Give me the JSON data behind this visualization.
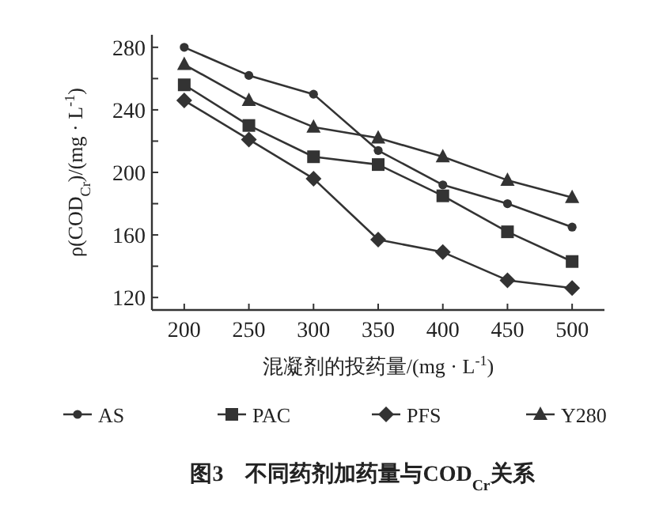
{
  "chart_data": {
    "type": "line",
    "title": "图3　不同药剂加药量与COD$_{Cr}$关系",
    "xlabel": "混凝剂的投药量/(mg · L$^{-1}$)",
    "ylabel": "ρ(COD$_{Cr}$)/(mg · L$^{-1}$)",
    "x": [
      200,
      250,
      300,
      350,
      400,
      450,
      500
    ],
    "xlim": [
      175,
      525
    ],
    "ylim": [
      112,
      288
    ],
    "xticks": [
      200,
      250,
      300,
      350,
      400,
      450,
      500
    ],
    "yticks": [
      120,
      {
        "value": 140,
        "label": null
      },
      160,
      {
        "value": 180,
        "label": null
      },
      200,
      {
        "value": 220,
        "label": null
      },
      240,
      {
        "value": 260,
        "label": null
      },
      280
    ],
    "legend": "bottom",
    "line_style": "solid",
    "series": [
      {
        "name": "AS",
        "color": "#333333",
        "marker": "circle",
        "values": [
          280,
          262,
          250,
          214,
          192,
          180,
          165
        ]
      },
      {
        "name": "PAC",
        "color": "#333333",
        "marker": "square",
        "values": [
          256,
          230,
          210,
          205,
          185,
          162,
          143
        ]
      },
      {
        "name": "PFS",
        "color": "#333333",
        "marker": "diamond",
        "values": [
          246,
          221,
          196,
          157,
          149,
          131,
          126
        ]
      },
      {
        "name": "Y280",
        "color": "#333333",
        "marker": "triangle",
        "values": [
          269,
          246,
          229,
          222,
          210,
          195,
          184
        ]
      }
    ]
  }
}
